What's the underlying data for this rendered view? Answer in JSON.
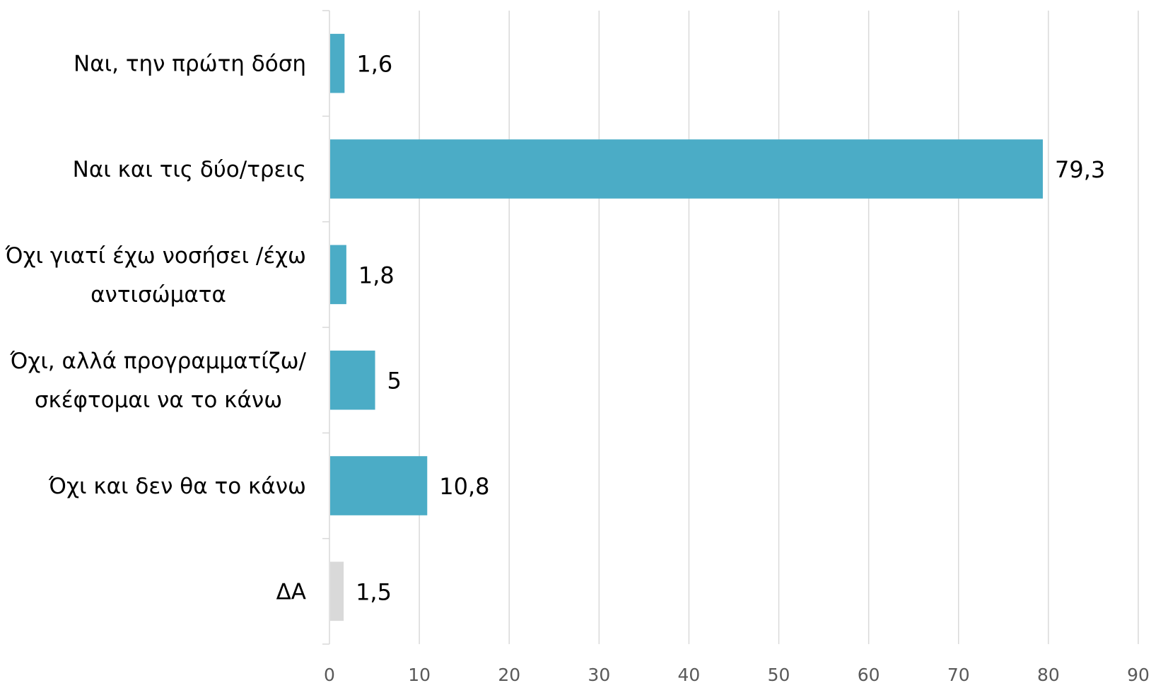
{
  "chart_data": {
    "type": "bar",
    "orientation": "horizontal",
    "categories": [
      [
        "Ναι, την πρώτη δόση"
      ],
      [
        "Ναι και τις δύο/τρεις"
      ],
      [
        "Όχι γιατί έχω νοσήσει /έχω",
        "αντισώματα"
      ],
      [
        "Όχι, αλλά προγραμματίζω/",
        "σκέφτομαι να το κάνω"
      ],
      [
        "Όχι και δεν θα το κάνω"
      ],
      [
        "ΔΑ"
      ]
    ],
    "values": [
      1.6,
      79.3,
      1.8,
      5,
      10.8,
      1.5
    ],
    "value_labels": [
      "1,6",
      "79,3",
      "1,8",
      "5",
      "10,8",
      "1,5"
    ],
    "colors": [
      "#4BACC6",
      "#4BACC6",
      "#4BACC6",
      "#4BACC6",
      "#4BACC6",
      "#D9D9D9"
    ],
    "xlim": [
      0,
      90
    ],
    "xticks": [
      0,
      10,
      20,
      30,
      40,
      50,
      60,
      70,
      80,
      90
    ],
    "grid": true,
    "gridline_color": "#D9D9D9",
    "title": "",
    "xlabel": "",
    "ylabel": ""
  }
}
